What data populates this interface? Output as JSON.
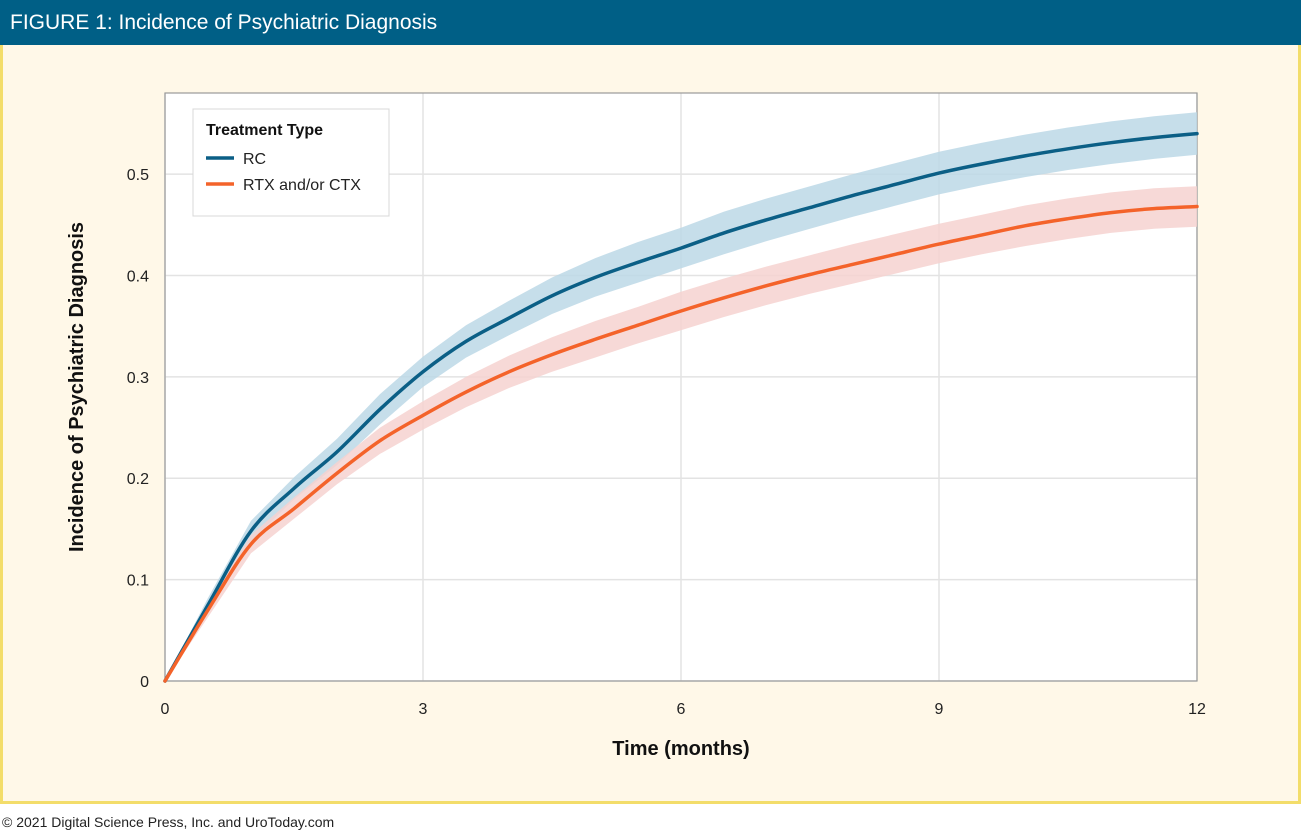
{
  "header": {
    "title": "FIGURE 1: Incidence of Psychiatric Diagnosis"
  },
  "footer": {
    "copyright": "© 2021 Digital Science Press, Inc. and UroToday.com"
  },
  "colors": {
    "header_bg": "#005f86",
    "frame_bg": "#fff8e8",
    "frame_border": "#f3dd6a",
    "rc_line": "#0b5f86",
    "rc_band": "#bcd8e6",
    "rtx_line": "#f4632a",
    "rtx_band": "#f6d2d0"
  },
  "chart_data": {
    "type": "line",
    "title": "",
    "xlabel": "Time (months)",
    "ylabel": "Incidence of Psychiatric Diagnosis",
    "xlim": [
      0,
      12
    ],
    "ylim": [
      0,
      0.58
    ],
    "x_ticks": [
      "0",
      "3",
      "6",
      "9",
      "12"
    ],
    "x_tick_values": [
      0,
      3,
      6,
      9,
      12
    ],
    "y_ticks": [
      "0",
      "0.1",
      "0.2",
      "0.3",
      "0.4",
      "0.5"
    ],
    "y_tick_values": [
      0,
      0.1,
      0.2,
      0.3,
      0.4,
      0.5
    ],
    "grid": true,
    "legend": {
      "title": "Treatment Type",
      "placement": "top-left"
    },
    "x": [
      0,
      0.5,
      1,
      1.5,
      2,
      2.5,
      3,
      3.5,
      4,
      4.5,
      5,
      5.5,
      6,
      6.5,
      7,
      7.5,
      8,
      8.5,
      9,
      9.5,
      10,
      10.5,
      11,
      11.5,
      12
    ],
    "series": [
      {
        "name": "RC",
        "values": [
          0,
          0.075,
          0.148,
          0.19,
          0.226,
          0.268,
          0.305,
          0.335,
          0.358,
          0.38,
          0.398,
          0.413,
          0.427,
          0.442,
          0.455,
          0.467,
          0.479,
          0.49,
          0.501,
          0.51,
          0.518,
          0.525,
          0.531,
          0.536,
          0.54
        ],
        "lower": [
          0,
          0.068,
          0.138,
          0.179,
          0.213,
          0.253,
          0.29,
          0.319,
          0.341,
          0.362,
          0.379,
          0.393,
          0.407,
          0.421,
          0.434,
          0.446,
          0.458,
          0.469,
          0.48,
          0.489,
          0.497,
          0.504,
          0.51,
          0.515,
          0.519
        ],
        "upper": [
          0,
          0.082,
          0.158,
          0.201,
          0.239,
          0.283,
          0.32,
          0.351,
          0.375,
          0.398,
          0.417,
          0.433,
          0.447,
          0.463,
          0.476,
          0.488,
          0.5,
          0.511,
          0.522,
          0.531,
          0.539,
          0.546,
          0.552,
          0.557,
          0.561
        ]
      },
      {
        "name": "RTX and/or CTX",
        "values": [
          0,
          0.07,
          0.135,
          0.17,
          0.205,
          0.237,
          0.262,
          0.285,
          0.305,
          0.322,
          0.337,
          0.351,
          0.365,
          0.378,
          0.39,
          0.401,
          0.411,
          0.421,
          0.431,
          0.44,
          0.449,
          0.456,
          0.462,
          0.466,
          0.468
        ],
        "lower": [
          0,
          0.063,
          0.126,
          0.16,
          0.194,
          0.224,
          0.248,
          0.27,
          0.289,
          0.305,
          0.319,
          0.333,
          0.346,
          0.359,
          0.371,
          0.382,
          0.392,
          0.402,
          0.412,
          0.421,
          0.429,
          0.436,
          0.442,
          0.446,
          0.448
        ],
        "upper": [
          0,
          0.077,
          0.144,
          0.181,
          0.216,
          0.25,
          0.276,
          0.3,
          0.321,
          0.339,
          0.355,
          0.369,
          0.384,
          0.397,
          0.409,
          0.42,
          0.431,
          0.441,
          0.451,
          0.46,
          0.469,
          0.476,
          0.482,
          0.486,
          0.488
        ]
      }
    ]
  }
}
